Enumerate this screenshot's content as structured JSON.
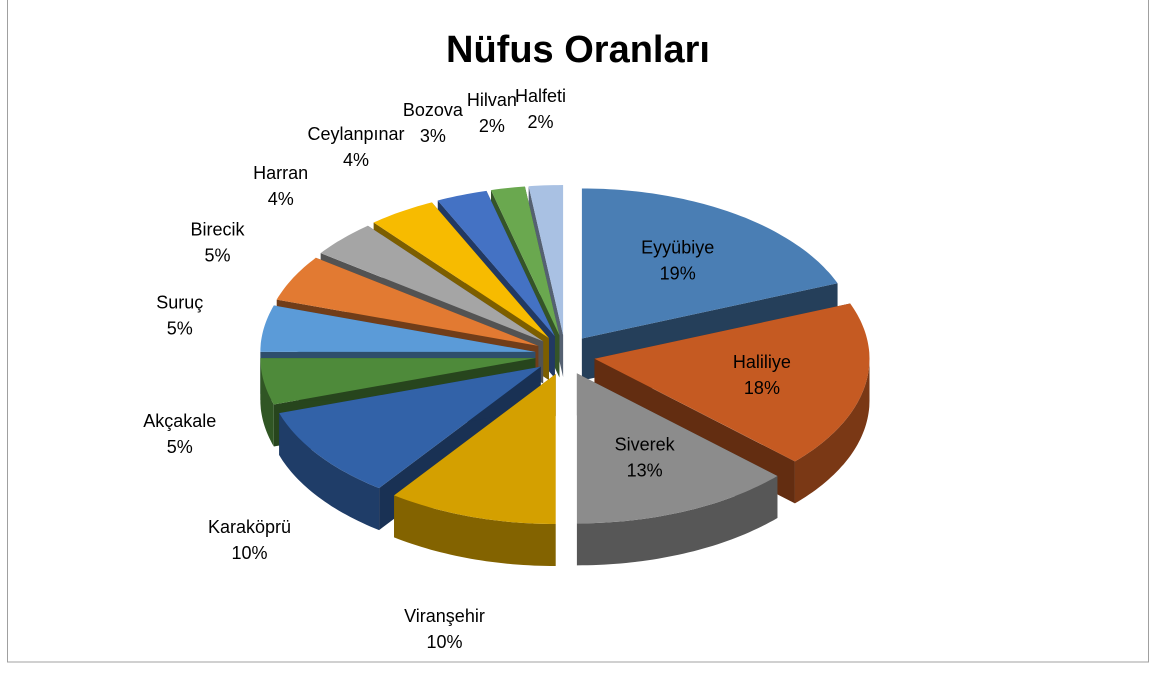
{
  "chart_data": {
    "type": "pie3d",
    "title": "Nüfus Oranları",
    "categories": [
      "Eyyübiye",
      "Haliliye",
      "Siverek",
      "Viranşehir",
      "Karaköprü",
      "Akçakale",
      "Suruç",
      "Birecik",
      "Harran",
      "Ceylanpınar",
      "Bozova",
      "Hilvan",
      "Halfeti"
    ],
    "values": [
      19,
      18,
      13,
      10,
      10,
      5,
      5,
      5,
      4,
      4,
      3,
      2,
      2
    ],
    "value_labels": [
      "19%",
      "18%",
      "13%",
      "10%",
      "10%",
      "5%",
      "5%",
      "5%",
      "4%",
      "4%",
      "3%",
      "2%",
      "2%"
    ],
    "colors": [
      "#4a7eb4",
      "#c55a22",
      "#8c8c8c",
      "#d4a000",
      "#3262a8",
      "#4e8a3a",
      "#5b9bd8",
      "#e27a32",
      "#a5a5a5",
      "#f7bb00",
      "#4472c4",
      "#6aa84f",
      "#a9c1e3"
    ]
  }
}
